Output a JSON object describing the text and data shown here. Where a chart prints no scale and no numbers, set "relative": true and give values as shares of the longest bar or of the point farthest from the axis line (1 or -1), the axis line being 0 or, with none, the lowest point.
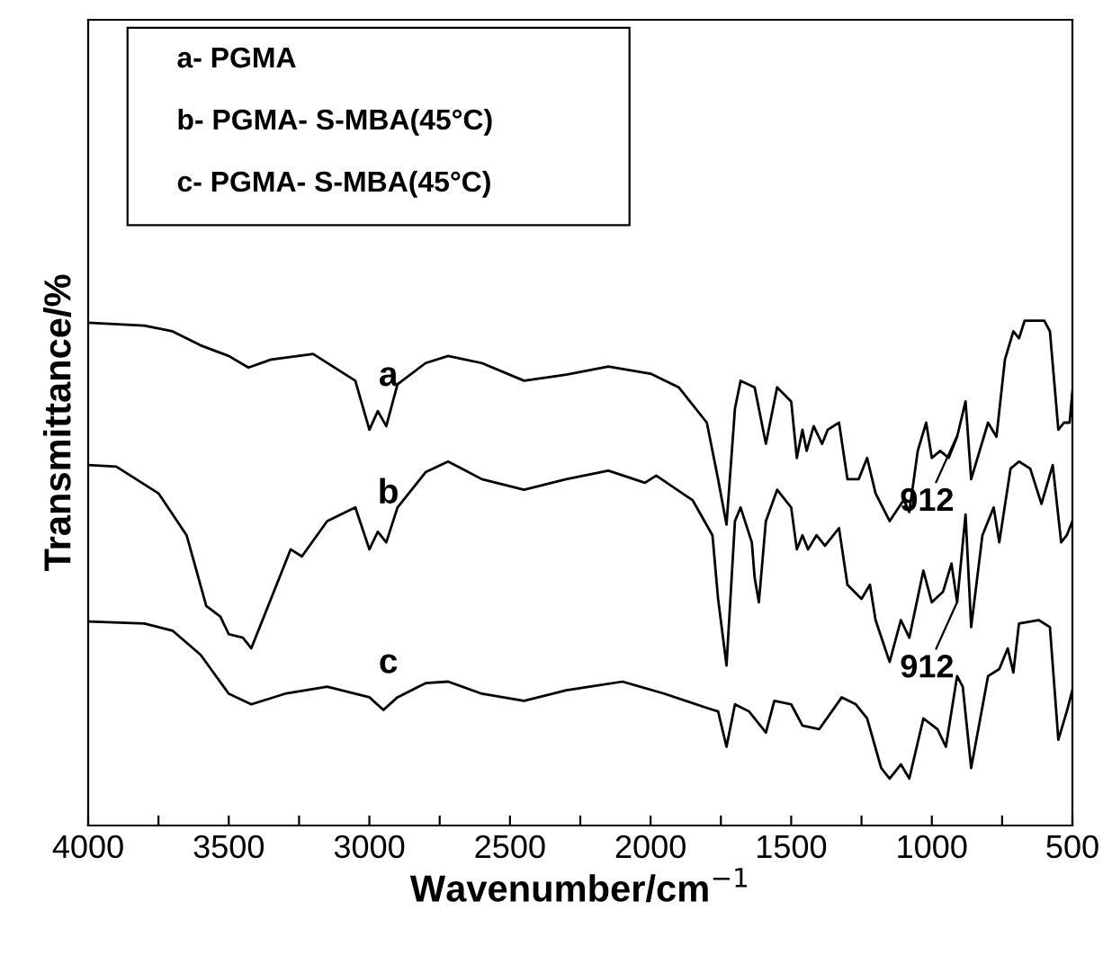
{
  "chart_data": {
    "type": "line",
    "relative": true,
    "xlabel": "Wavenumber/cm$^{−1}$",
    "ylabel": "Transmittance/%",
    "xlim": [
      4000,
      500
    ],
    "xticks": [
      4000,
      {
        "value": 3750,
        "label": null
      },
      3500,
      {
        "value": 3250,
        "label": null
      },
      3000,
      {
        "value": 2750,
        "label": null
      },
      2500,
      {
        "value": 2250,
        "label": null
      },
      2000,
      {
        "value": 1750,
        "label": null
      },
      1500,
      {
        "value": 1250,
        "label": null
      },
      1000,
      {
        "value": 750,
        "label": null
      },
      500
    ],
    "grid": false,
    "legend": false,
    "marker": "none",
    "line_style": "solid",
    "annotations": [
      "a- PGMA",
      "b- PGMA- S-MBA(45°C)",
      "c- PGMA- S-MBA(45°C)",
      {
        "text": "912",
        "x": 912,
        "y": 0.77
      },
      {
        "text": "912",
        "x": 912,
        "y": 0.44
      }
    ],
    "series": [
      {
        "name": "a",
        "color": "#000000",
        "x": [
          4000,
          3800,
          3700,
          3600,
          3500,
          3430,
          3350,
          3200,
          3050,
          3000,
          2970,
          2940,
          2900,
          2800,
          2720,
          2600,
          2450,
          2300,
          2150,
          2000,
          1900,
          1800,
          1760,
          1730,
          1700,
          1680,
          1630,
          1590,
          1550,
          1500,
          1480,
          1460,
          1445,
          1420,
          1390,
          1370,
          1330,
          1300,
          1260,
          1230,
          1200,
          1150,
          1100,
          1080,
          1050,
          1020,
          1000,
          970,
          940,
          910,
          880,
          860,
          800,
          770,
          740,
          710,
          690,
          670,
          600,
          580,
          550,
          530,
          510,
          500
        ],
        "values": [
          0.996,
          0.99,
          0.979,
          0.951,
          0.93,
          0.907,
          0.923,
          0.934,
          0.881,
          0.784,
          0.821,
          0.791,
          0.874,
          0.916,
          0.93,
          0.916,
          0.881,
          0.893,
          0.909,
          0.895,
          0.868,
          0.798,
          0.686,
          0.596,
          0.826,
          0.881,
          0.868,
          0.756,
          0.868,
          0.84,
          0.728,
          0.784,
          0.742,
          0.791,
          0.756,
          0.784,
          0.798,
          0.686,
          0.686,
          0.728,
          0.658,
          0.603,
          0.645,
          0.621,
          0.742,
          0.798,
          0.728,
          0.742,
          0.728,
          0.77,
          0.84,
          0.686,
          0.798,
          0.77,
          0.923,
          0.979,
          0.965,
          1.0,
          1.0,
          0.979,
          0.784,
          0.798,
          0.798,
          0.86
        ]
      },
      {
        "name": "b",
        "color": "#000000",
        "x": [
          4000,
          3900,
          3750,
          3650,
          3580,
          3530,
          3500,
          3450,
          3420,
          3350,
          3280,
          3240,
          3150,
          3050,
          3000,
          2970,
          2940,
          2900,
          2800,
          2720,
          2600,
          2450,
          2300,
          2150,
          2020,
          1980,
          1850,
          1780,
          1760,
          1730,
          1700,
          1680,
          1640,
          1630,
          1615,
          1590,
          1550,
          1500,
          1480,
          1460,
          1440,
          1410,
          1380,
          1330,
          1300,
          1250,
          1220,
          1200,
          1150,
          1110,
          1080,
          1030,
          1000,
          960,
          930,
          910,
          880,
          860,
          820,
          780,
          760,
          720,
          690,
          650,
          610,
          570,
          540,
          520,
          500
        ],
        "values": [
          0.714,
          0.711,
          0.658,
          0.575,
          0.435,
          0.414,
          0.379,
          0.372,
          0.351,
          0.449,
          0.547,
          0.533,
          0.603,
          0.63,
          0.547,
          0.582,
          0.561,
          0.63,
          0.7,
          0.721,
          0.686,
          0.665,
          0.686,
          0.703,
          0.679,
          0.693,
          0.644,
          0.575,
          0.449,
          0.317,
          0.603,
          0.63,
          0.561,
          0.491,
          0.442,
          0.603,
          0.665,
          0.63,
          0.547,
          0.575,
          0.547,
          0.575,
          0.554,
          0.589,
          0.477,
          0.449,
          0.477,
          0.407,
          0.324,
          0.407,
          0.372,
          0.505,
          0.442,
          0.463,
          0.519,
          0.442,
          0.616,
          0.393,
          0.575,
          0.63,
          0.561,
          0.707,
          0.721,
          0.707,
          0.637,
          0.714,
          0.561,
          0.575,
          0.603
        ]
      },
      {
        "name": "c",
        "color": "#000000",
        "x": [
          4000,
          3800,
          3700,
          3600,
          3500,
          3420,
          3300,
          3150,
          3000,
          2950,
          2900,
          2800,
          2720,
          2600,
          2450,
          2300,
          2100,
          1950,
          1800,
          1760,
          1730,
          1700,
          1650,
          1590,
          1560,
          1500,
          1460,
          1400,
          1320,
          1270,
          1230,
          1180,
          1150,
          1110,
          1080,
          1030,
          980,
          950,
          910,
          890,
          860,
          800,
          760,
          730,
          710,
          690,
          620,
          580,
          550,
          520,
          500
        ],
        "values": [
          0.404,
          0.4,
          0.386,
          0.338,
          0.261,
          0.24,
          0.261,
          0.275,
          0.254,
          0.229,
          0.254,
          0.282,
          0.285,
          0.261,
          0.247,
          0.268,
          0.285,
          0.261,
          0.233,
          0.226,
          0.156,
          0.24,
          0.226,
          0.184,
          0.247,
          0.24,
          0.198,
          0.191,
          0.254,
          0.24,
          0.212,
          0.114,
          0.093,
          0.121,
          0.093,
          0.212,
          0.191,
          0.156,
          0.296,
          0.275,
          0.114,
          0.296,
          0.31,
          0.351,
          0.303,
          0.4,
          0.407,
          0.393,
          0.17,
          0.226,
          0.268
        ]
      }
    ]
  }
}
